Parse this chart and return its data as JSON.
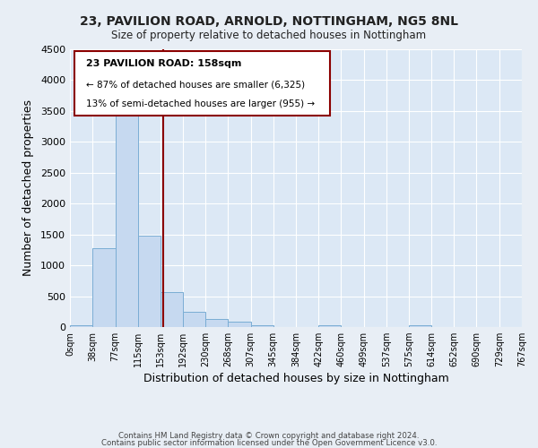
{
  "title": "23, PAVILION ROAD, ARNOLD, NOTTINGHAM, NG5 8NL",
  "subtitle": "Size of property relative to detached houses in Nottingham",
  "xlabel": "Distribution of detached houses by size in Nottingham",
  "ylabel": "Number of detached properties",
  "bin_edges": [
    0,
    38,
    77,
    115,
    153,
    192,
    230,
    268,
    307,
    345,
    384,
    422,
    460,
    499,
    537,
    575,
    614,
    652,
    690,
    729,
    767
  ],
  "bar_heights": [
    30,
    1280,
    3500,
    1480,
    570,
    240,
    130,
    80,
    30,
    0,
    0,
    30,
    0,
    0,
    0,
    30,
    0,
    0,
    0,
    0
  ],
  "bar_color": "#c6d9f0",
  "bar_edgecolor": "#7aadd4",
  "property_size": 158,
  "vline_color": "#8b0000",
  "annotation_title": "23 PAVILION ROAD: 158sqm",
  "annotation_line1": "← 87% of detached houses are smaller (6,325)",
  "annotation_line2": "13% of semi-detached houses are larger (955) →",
  "annotation_box_color": "#8b0000",
  "annotation_bg": "#ffffff",
  "ylim": [
    0,
    4500
  ],
  "yticks": [
    0,
    500,
    1000,
    1500,
    2000,
    2500,
    3000,
    3500,
    4000,
    4500
  ],
  "background_color": "#dce8f5",
  "fig_background_color": "#e8eef5",
  "grid_color": "#ffffff",
  "footer_line1": "Contains HM Land Registry data © Crown copyright and database right 2024.",
  "footer_line2": "Contains public sector information licensed under the Open Government Licence v3.0."
}
